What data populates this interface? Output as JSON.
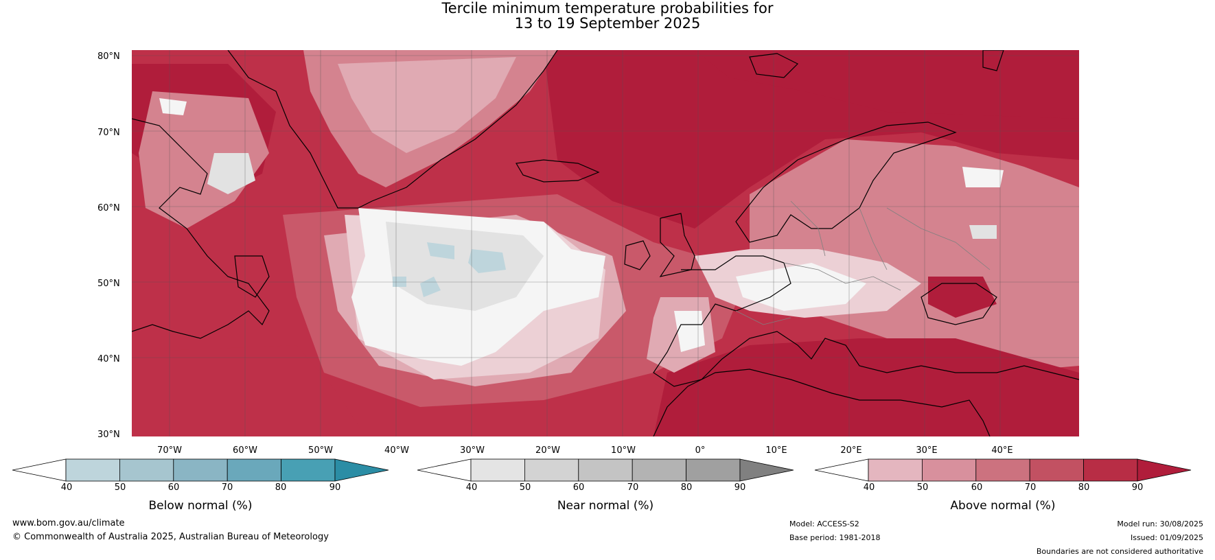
{
  "title_line1": "Tercile minimum temperature probabilities for",
  "title_line2": "13 to 19 September 2025",
  "lat_ticks": [
    "80°N",
    "70°N",
    "60°N",
    "50°N",
    "40°N",
    "30°N"
  ],
  "lon_ticks": [
    "70°W",
    "60°W",
    "50°W",
    "40°W",
    "30°W",
    "20°W",
    "10°W",
    "0°",
    "10°E",
    "20°E",
    "30°E",
    "40°E"
  ],
  "colorbars": {
    "below": {
      "title": "Below normal (%)",
      "ticks": [
        "40",
        "50",
        "60",
        "70",
        "80",
        "90"
      ],
      "colors": [
        "#ffffff",
        "#bed5dc",
        "#a6c5cf",
        "#8ab5c4",
        "#6aa8bb",
        "#48a0b4",
        "#2b8da5"
      ]
    },
    "near": {
      "title": "Near normal (%)",
      "ticks": [
        "40",
        "50",
        "60",
        "70",
        "80",
        "90"
      ],
      "colors": [
        "#ffffff",
        "#e4e4e4",
        "#d3d3d3",
        "#c4c4c4",
        "#b3b3b3",
        "#a0a0a0",
        "#808080"
      ]
    },
    "above": {
      "title": "Above normal (%)",
      "ticks": [
        "40",
        "50",
        "60",
        "70",
        "80",
        "90"
      ],
      "colors": [
        "#ffffff",
        "#e4b6bf",
        "#d8909d",
        "#cc727f",
        "#c25162",
        "#b82d45",
        "#b01d3b"
      ]
    }
  },
  "footer": {
    "website": "www.bom.gov.au/climate",
    "copyright": "© Commonwealth of Australia 2025, Australian Bureau of Meteorology",
    "model": "Model: ACCESS-S2",
    "base_period": "Base period: 1981-2018",
    "model_run": "Model run: 30/08/2025",
    "issued": "Issued: 01/09/2025",
    "disclaimer": "Boundaries are not considered authoritative"
  },
  "map_colors": {
    "above_90": "#b01d3b",
    "above_80": "#be3049",
    "above_70": "#c9596a",
    "above_60": "#d4838f",
    "above_50": "#e0aab3",
    "above_40": "#ecd0d5",
    "near_40": "#f5f5f5",
    "near_50": "#e2e2e2",
    "near_60": "#d3d3d3",
    "near_70": "#c0c0c0",
    "below_50": "#bed5dc",
    "coast": "#000000",
    "border": "#808080"
  }
}
